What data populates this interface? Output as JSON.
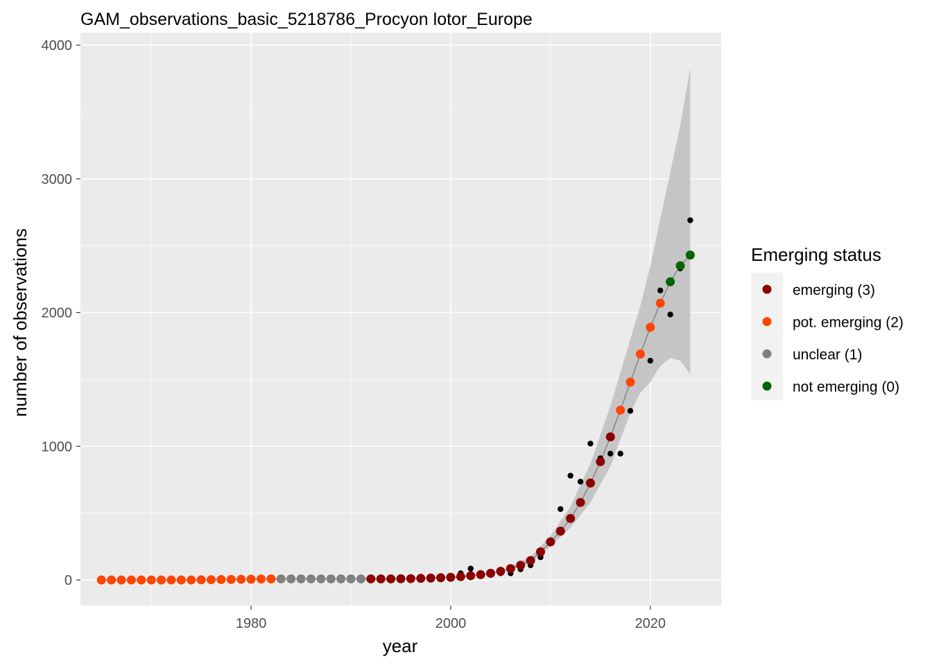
{
  "chart_data": {
    "type": "scatter",
    "title": "GAM_observations_basic_5218786_Procyon lotor_Europe",
    "xlabel": "year",
    "ylabel": "number of observations",
    "xlim": [
      1962.9,
      2027.1
    ],
    "ylim": [
      -180,
      4000
    ],
    "x_ticks": [
      1980,
      2000,
      2020
    ],
    "y_ticks": [
      0,
      1000,
      2000,
      3000,
      4000
    ],
    "grid": true,
    "legend": {
      "title": "Emerging status",
      "position": "right",
      "entries": [
        {
          "label": "emerging (3)",
          "color": "#8B0000"
        },
        {
          "label": "pot. emerging (2)",
          "color": "#FF4500"
        },
        {
          "label": "unclear (1)",
          "color": "#808080"
        },
        {
          "label": "not emerging (0)",
          "color": "#006400"
        }
      ]
    },
    "colors": {
      "panel_bg": "#EBEBEB",
      "grid": "#FFFFFF",
      "ribbon": "#BEBEBE",
      "fit_line": "#808080",
      "observed": "#000000"
    },
    "observed": {
      "x": [
        1965,
        1966,
        1967,
        1968,
        1969,
        1970,
        1971,
        1972,
        1973,
        1974,
        1975,
        1976,
        1977,
        1978,
        1979,
        1980,
        1981,
        1982,
        1983,
        1984,
        1985,
        1986,
        1987,
        1988,
        1989,
        1990,
        1991,
        1992,
        1993,
        1994,
        1995,
        1996,
        1997,
        1998,
        1999,
        2000,
        2001,
        2002,
        2003,
        2004,
        2005,
        2006,
        2007,
        2008,
        2009,
        2010,
        2011,
        2012,
        2013,
        2014,
        2015,
        2016,
        2017,
        2018,
        2019,
        2020,
        2021,
        2022,
        2023,
        2024
      ],
      "y": [
        0,
        0,
        0,
        0,
        0,
        0,
        0,
        0,
        0,
        0,
        0,
        0,
        0,
        0,
        10,
        0,
        0,
        5,
        0,
        0,
        0,
        0,
        0,
        0,
        0,
        0,
        0,
        0,
        0,
        0,
        0,
        5,
        5,
        10,
        10,
        20,
        50,
        85,
        40,
        40,
        50,
        50,
        80,
        110,
        170,
        290,
        530,
        780,
        735,
        1020,
        910,
        945,
        945,
        1265,
        1700,
        1640,
        2165,
        1985,
        2330,
        2690
      ]
    },
    "fitted": {
      "x": [
        1965,
        1966,
        1967,
        1968,
        1969,
        1970,
        1971,
        1972,
        1973,
        1974,
        1975,
        1976,
        1977,
        1978,
        1979,
        1980,
        1981,
        1982,
        1983,
        1984,
        1985,
        1986,
        1987,
        1988,
        1989,
        1990,
        1991,
        1992,
        1993,
        1994,
        1995,
        1996,
        1997,
        1998,
        1999,
        2000,
        2001,
        2002,
        2003,
        2004,
        2005,
        2006,
        2007,
        2008,
        2009,
        2010,
        2011,
        2012,
        2013,
        2014,
        2015,
        2016,
        2017,
        2018,
        2019,
        2020,
        2021,
        2022,
        2023,
        2024
      ],
      "y": [
        0,
        0,
        0,
        0,
        0,
        0,
        0,
        0,
        0,
        0,
        1,
        2,
        3,
        4,
        5,
        6,
        7,
        8,
        8,
        8,
        8,
        8,
        8,
        8,
        8,
        8,
        8,
        8,
        8,
        8,
        9,
        10,
        12,
        14,
        17,
        20,
        25,
        32,
        40,
        50,
        65,
        85,
        110,
        145,
        210,
        285,
        365,
        460,
        580,
        725,
        885,
        1070,
        1270,
        1480,
        1690,
        1890,
        2070,
        2230,
        2350,
        2430
      ],
      "status": [
        2,
        2,
        2,
        2,
        2,
        2,
        2,
        2,
        2,
        2,
        2,
        2,
        2,
        2,
        2,
        2,
        2,
        2,
        1,
        1,
        1,
        1,
        1,
        1,
        1,
        1,
        1,
        3,
        3,
        3,
        3,
        3,
        3,
        3,
        3,
        3,
        3,
        3,
        3,
        3,
        3,
        3,
        3,
        3,
        3,
        3,
        3,
        3,
        3,
        3,
        3,
        3,
        2,
        2,
        2,
        2,
        2,
        0,
        0,
        0
      ]
    },
    "ribbon": {
      "x": [
        2006,
        2008,
        2010,
        2012,
        2014,
        2016,
        2017,
        2018,
        2019,
        2020,
        2021,
        2022,
        2023,
        2024
      ],
      "lower": [
        75,
        125,
        250,
        390,
        580,
        850,
        1050,
        1250,
        1400,
        1480,
        1600,
        1660,
        1640,
        1540
      ],
      "upper": [
        100,
        175,
        330,
        550,
        870,
        1300,
        1550,
        1800,
        2050,
        2350,
        2700,
        3050,
        3400,
        3830
      ]
    }
  }
}
